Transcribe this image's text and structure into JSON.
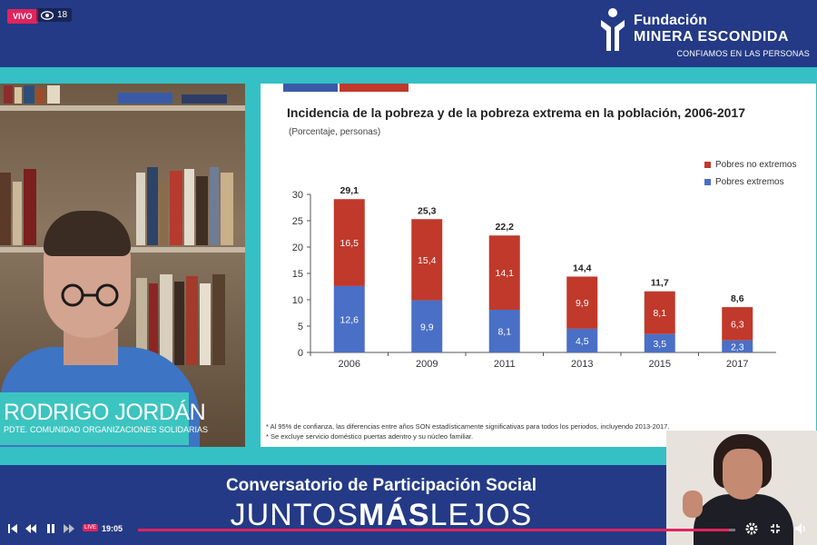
{
  "stream": {
    "live_label": "VIVO",
    "viewers": "18",
    "time": "19:05",
    "live_small": "LIVE",
    "progress": 0.99
  },
  "brand": {
    "line1": "Fundación",
    "line2": "MINERA ESCONDIDA",
    "line3": "CONFIAMOS EN LAS PERSONAS"
  },
  "speaker": {
    "name": "RODRIGO JORDÁN",
    "title": "PDTE. COMUNIDAD ORGANIZACIONES SOLIDARIAS"
  },
  "slide": {
    "footnote1": "* Al 95% de confianza, las diferencias entre años SON estadísticamente significativas para todos los periodos, incluyendo 2013-2017.",
    "footnote2": "* Se excluye servicio doméstico puertas adentro y su núcleo familiar."
  },
  "chart_data": {
    "type": "bar",
    "stacked": true,
    "title": "Incidencia de la pobreza y de la pobreza extrema en la población, 2006-2017",
    "subtitle": "(Porcentaje, personas)",
    "categories": [
      "2006",
      "2009",
      "2011",
      "2013",
      "2015",
      "2017"
    ],
    "series": [
      {
        "name": "Pobres extremos",
        "values": [
          12.6,
          9.9,
          8.1,
          4.5,
          3.5,
          2.3
        ],
        "labels": [
          "12,6",
          "9,9",
          "8,1",
          "4,5",
          "3,5",
          "2,3"
        ],
        "color": "#4a6fc6"
      },
      {
        "name": "Pobres no extremos",
        "values": [
          16.5,
          15.4,
          14.1,
          9.9,
          8.1,
          6.3
        ],
        "labels": [
          "16,5",
          "15,4",
          "14,1",
          "9,9",
          "8,1",
          "6,3"
        ],
        "color": "#c0392b"
      }
    ],
    "totals": [
      "29,1",
      "25,3",
      "22,2",
      "14,4",
      "11,7",
      "8,6"
    ],
    "yticks": [
      "0",
      "5",
      "10",
      "15",
      "20",
      "25",
      "30"
    ],
    "ylim": [
      0,
      30
    ],
    "legend_position": "top-right",
    "grid": false
  },
  "footer": {
    "title": "Conversatorio de Participación Social",
    "big_light1": "JUNTOS",
    "big_bold": "MÁS",
    "big_light2": "LEJOS"
  },
  "colors": {
    "primary_blue": "#243a86",
    "teal": "#34c0c5",
    "live_red": "#e0245e"
  }
}
